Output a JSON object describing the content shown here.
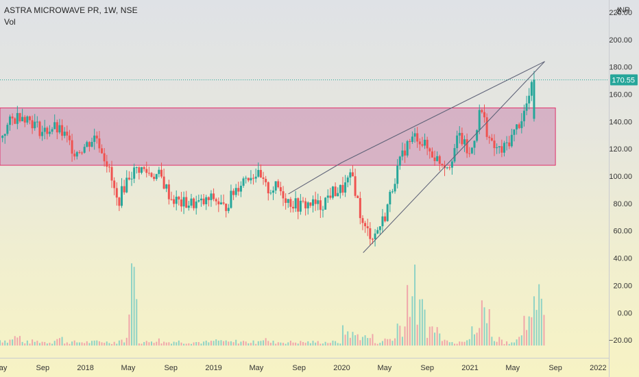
{
  "chart_data": {
    "type": "candlestick",
    "title": "ASTRA MICROWAVE PR, 1W, NSE",
    "volume_label": "Vol",
    "currency": "INR",
    "last_price": "170.55",
    "ylim": [
      -33,
      225
    ],
    "y_ticks": [
      "220.00",
      "200.00",
      "180.00",
      "160.00",
      "140.00",
      "120.00",
      "100.00",
      "80.00",
      "60.00",
      "40.00",
      "20.00",
      "0.00",
      "−20.00"
    ],
    "y_tick_values": [
      220,
      200,
      180,
      160,
      140,
      120,
      100,
      80,
      60,
      40,
      20,
      0,
      -20
    ],
    "top_tick": "2",
    "x_ticks": [
      "May",
      "Sep",
      "2018",
      "May",
      "Sep",
      "2019",
      "May",
      "Sep",
      "2020",
      "May",
      "Sep",
      "2021",
      "May",
      "Sep",
      "2022"
    ],
    "x_tick_dates": [
      "2017-05",
      "2017-09",
      "2018-01",
      "2018-05",
      "2018-09",
      "2019-01",
      "2019-05",
      "2019-09",
      "2020-01",
      "2020-05",
      "2020-09",
      "2021-01",
      "2021-05",
      "2021-09",
      "2022-01"
    ],
    "x_start": "2017-05",
    "x_end": "2022-02",
    "zone": {
      "from": "2017-03",
      "to": "2021-09",
      "low": 108,
      "high": 150
    },
    "trendlines": [
      {
        "from": {
          "date": "2019-08",
          "price": 87
        },
        "to": {
          "date": "2020-01",
          "price": 110
        }
      },
      {
        "from": {
          "date": "2020-01",
          "price": 110
        },
        "to": {
          "date": "2021-08",
          "price": 184
        }
      },
      {
        "from": {
          "date": "2020-03",
          "price": 44
        },
        "to": {
          "date": "2021-08",
          "price": 184
        }
      }
    ],
    "price_path": [
      [
        "2017-05",
        128
      ],
      [
        "2017-06",
        140
      ],
      [
        "2017-07",
        146
      ],
      [
        "2017-08",
        140
      ],
      [
        "2017-09",
        132
      ],
      [
        "2017-10",
        136
      ],
      [
        "2017-11",
        130
      ],
      [
        "2017-12",
        118
      ],
      [
        "2018-01",
        122
      ],
      [
        "2018-02",
        130
      ],
      [
        "2018-03",
        110
      ],
      [
        "2018-04",
        80
      ],
      [
        "2018-05",
        100
      ],
      [
        "2018-06",
        106
      ],
      [
        "2018-07",
        102
      ],
      [
        "2018-08",
        100
      ],
      [
        "2018-09",
        84
      ],
      [
        "2018-10",
        80
      ],
      [
        "2018-11",
        80
      ],
      [
        "2018-12",
        80
      ],
      [
        "2019-01",
        84
      ],
      [
        "2019-02",
        76
      ],
      [
        "2019-03",
        90
      ],
      [
        "2019-04",
        100
      ],
      [
        "2019-05",
        102
      ],
      [
        "2019-06",
        90
      ],
      [
        "2019-07",
        92
      ],
      [
        "2019-08",
        82
      ],
      [
        "2019-09",
        78
      ],
      [
        "2019-10",
        80
      ],
      [
        "2019-11",
        78
      ],
      [
        "2019-12",
        88
      ],
      [
        "2020-01",
        90
      ],
      [
        "2020-02",
        100
      ],
      [
        "2020-03",
        62
      ],
      [
        "2020-04",
        56
      ],
      [
        "2020-05",
        70
      ],
      [
        "2020-06",
        100
      ],
      [
        "2020-07",
        122
      ],
      [
        "2020-08",
        130
      ],
      [
        "2020-09",
        120
      ],
      [
        "2020-10",
        112
      ],
      [
        "2020-11",
        108
      ],
      [
        "2020-12",
        130
      ],
      [
        "2021-01",
        114
      ],
      [
        "2021-02",
        150
      ],
      [
        "2021-03",
        122
      ],
      [
        "2021-04",
        118
      ],
      [
        "2021-05",
        130
      ],
      [
        "2021-06",
        145
      ],
      [
        "2021-07",
        170
      ]
    ],
    "volume_path": [
      [
        "2017-05",
        0.08
      ],
      [
        "2017-06",
        0.12
      ],
      [
        "2017-08",
        0.06
      ],
      [
        "2017-10",
        0.1
      ],
      [
        "2017-12",
        0.05
      ],
      [
        "2018-02",
        0.06
      ],
      [
        "2018-04",
        0.08
      ],
      [
        "2018-05",
        1.0
      ],
      [
        "2018-07",
        0.08
      ],
      [
        "2018-09",
        0.06
      ],
      [
        "2018-11",
        0.05
      ],
      [
        "2019-01",
        0.07
      ],
      [
        "2019-03",
        0.06
      ],
      [
        "2019-05",
        0.1
      ],
      [
        "2019-07",
        0.05
      ],
      [
        "2019-09",
        0.05
      ],
      [
        "2019-11",
        0.05
      ],
      [
        "2020-01",
        0.2
      ],
      [
        "2020-02",
        0.15
      ],
      [
        "2020-03",
        0.12
      ],
      [
        "2020-05",
        0.1
      ],
      [
        "2020-06",
        0.3
      ],
      [
        "2020-07",
        0.8
      ],
      [
        "2020-08",
        0.5
      ],
      [
        "2020-09",
        0.25
      ],
      [
        "2020-10",
        0.15
      ],
      [
        "2020-12",
        0.1
      ],
      [
        "2021-01",
        0.2
      ],
      [
        "2021-02",
        0.6
      ],
      [
        "2021-03",
        0.1
      ],
      [
        "2021-05",
        0.1
      ],
      [
        "2021-06",
        0.3
      ],
      [
        "2021-07",
        0.85
      ]
    ],
    "colors": {
      "up": "#26a69a",
      "down": "#ef5350",
      "vol_up": "#8fd3c5",
      "vol_down": "#f0a6aa",
      "zone_fill": "#d3a9c1",
      "zone_stroke": "#e0306a",
      "trend": "#5f6378",
      "price_line": "#26a69a",
      "axis_text": "#333333"
    },
    "grid": false,
    "legend": "none"
  }
}
